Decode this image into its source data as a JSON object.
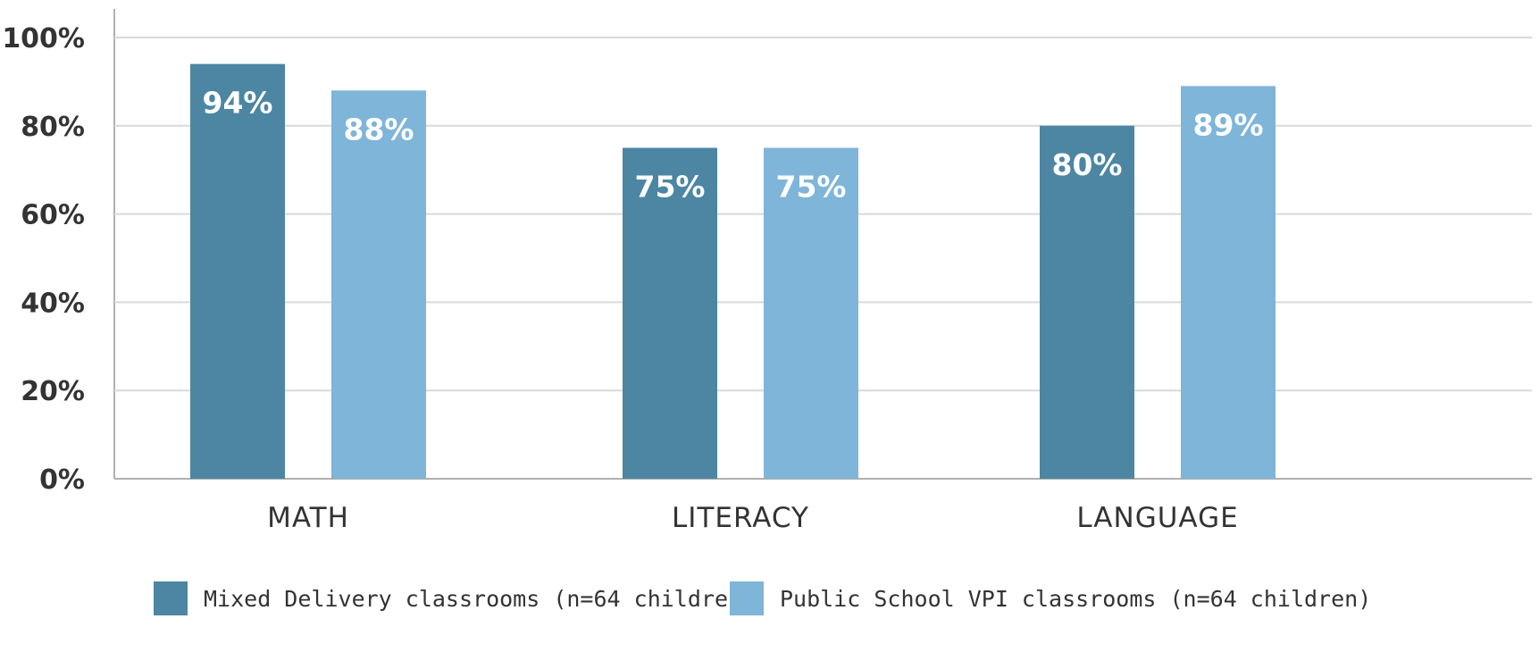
{
  "chart_data": {
    "type": "bar",
    "categories": [
      "MATH",
      "LITERACY",
      "LANGUAGE"
    ],
    "series": [
      {
        "name": "Mixed Delivery classrooms (n=64 children)",
        "values": [
          94,
          75,
          80
        ],
        "labels": [
          "94%",
          "75%",
          "80%"
        ],
        "color": "#4c86a3"
      },
      {
        "name": "Public School VPI classrooms (n=64 children)",
        "values": [
          88,
          75,
          89
        ],
        "labels": [
          "88%",
          "75%",
          "89%"
        ],
        "color": "#7fb5d8"
      }
    ],
    "yticks": [
      {
        "value": 0,
        "label": "0%"
      },
      {
        "value": 20,
        "label": "20%"
      },
      {
        "value": 40,
        "label": "40%"
      },
      {
        "value": 60,
        "label": "60%"
      },
      {
        "value": 80,
        "label": "80%"
      },
      {
        "value": 100,
        "label": "100%"
      }
    ],
    "ylim": [
      0,
      100
    ],
    "grid": true,
    "legend_position": "bottom",
    "title": "",
    "xlabel": "",
    "ylabel": ""
  }
}
